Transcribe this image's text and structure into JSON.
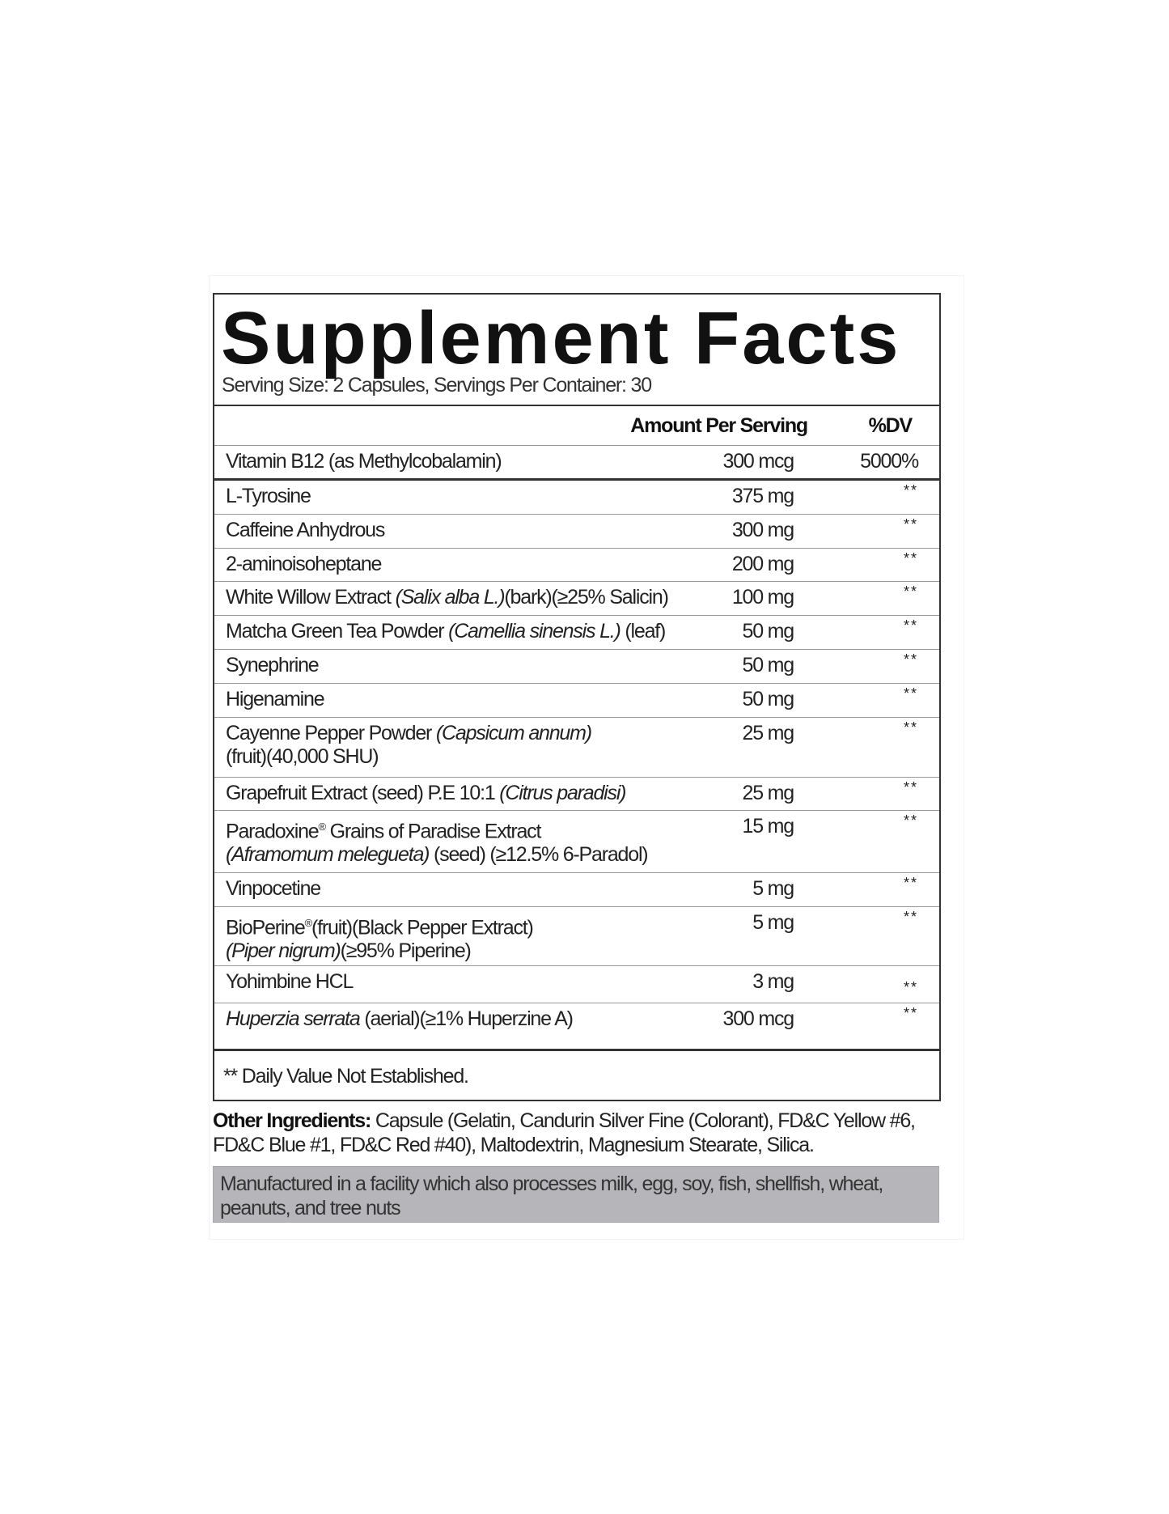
{
  "title": "Supplement Facts",
  "serving": "Serving Size: 2 Capsules, Servings Per Container: 30",
  "header": {
    "amount": "Amount Per Serving",
    "dv": "%DV"
  },
  "vitamin": {
    "name": "Vitamin B12 (as Methylcobalamin)",
    "amount": "300 mcg",
    "dv": "5000%"
  },
  "rows": [
    {
      "name": "L-Tyrosine",
      "amount": "375 mg",
      "dv": "**"
    },
    {
      "name": "Caffeine Anhydrous",
      "amount": "300 mg",
      "dv": "**"
    },
    {
      "name": "2-aminoisoheptane",
      "amount": "200 mg",
      "dv": "**"
    },
    {
      "name": "White Willow Extract ",
      "latin": "(Salix alba L.)",
      "rest": "(bark)(≥25% Salicin)",
      "amount": "100 mg",
      "dv": "**"
    },
    {
      "name": "Matcha Green Tea Powder ",
      "latin": "(Camellia sinensis L.)",
      "rest": " (leaf)",
      "amount": "50 mg",
      "dv": "**"
    },
    {
      "name": "Synephrine",
      "amount": "50 mg",
      "dv": "**"
    },
    {
      "name": "Higenamine",
      "amount": "50 mg",
      "dv": "**"
    },
    {
      "name": "Cayenne Pepper Powder ",
      "latin": "(Capsicum annum)",
      "line2": "(fruit)(40,000 SHU)",
      "amount": "25 mg",
      "dv": "**"
    },
    {
      "name": "Grapefruit Extract (seed) P.E 10:1 ",
      "latin": "(Citrus paradisi)",
      "amount": "25 mg",
      "dv": "**"
    },
    {
      "name": "Paradoxine",
      "reg": "®",
      "rest": " Grains of Paradise Extract",
      "latin2": "(Aframomum melegueta)",
      "line2": " (seed) (≥12.5% 6-Paradol)",
      "amount": "15 mg",
      "dv": "**"
    },
    {
      "name": "Vinpocetine",
      "amount": "5 mg",
      "dv": "**"
    },
    {
      "name": "BioPerine",
      "reg": "®",
      "rest": "(fruit)(Black Pepper Extract)",
      "latin2": "(Piper nigrum)",
      "line2": "(≥95% Piperine)",
      "amount": "5 mg",
      "dv": "**"
    },
    {
      "name": "Yohimbine HCL",
      "amount": "3 mg",
      "dv": "**"
    },
    {
      "latin": "Huperzia serrata",
      "rest": " (aerial)(≥1% Huperzine A)",
      "amount": "300 mcg",
      "dv": "**"
    }
  ],
  "footnote": "** Daily Value Not Established.",
  "other": {
    "label": "Other Ingredients:",
    "text": " Capsule (Gelatin, Candurin Silver Fine (Colorant), FD&C Yellow #6, FD&C Blue #1, FD&C Red #40), Maltodextrin, Magnesium Stearate, Silica."
  },
  "allergen": "Manufactured in a facility which also processes milk, egg, soy, fish, shellfish, wheat, peanuts, and tree nuts",
  "colors": {
    "allergen_bg": "#b6b6ba",
    "border": "#333333"
  }
}
